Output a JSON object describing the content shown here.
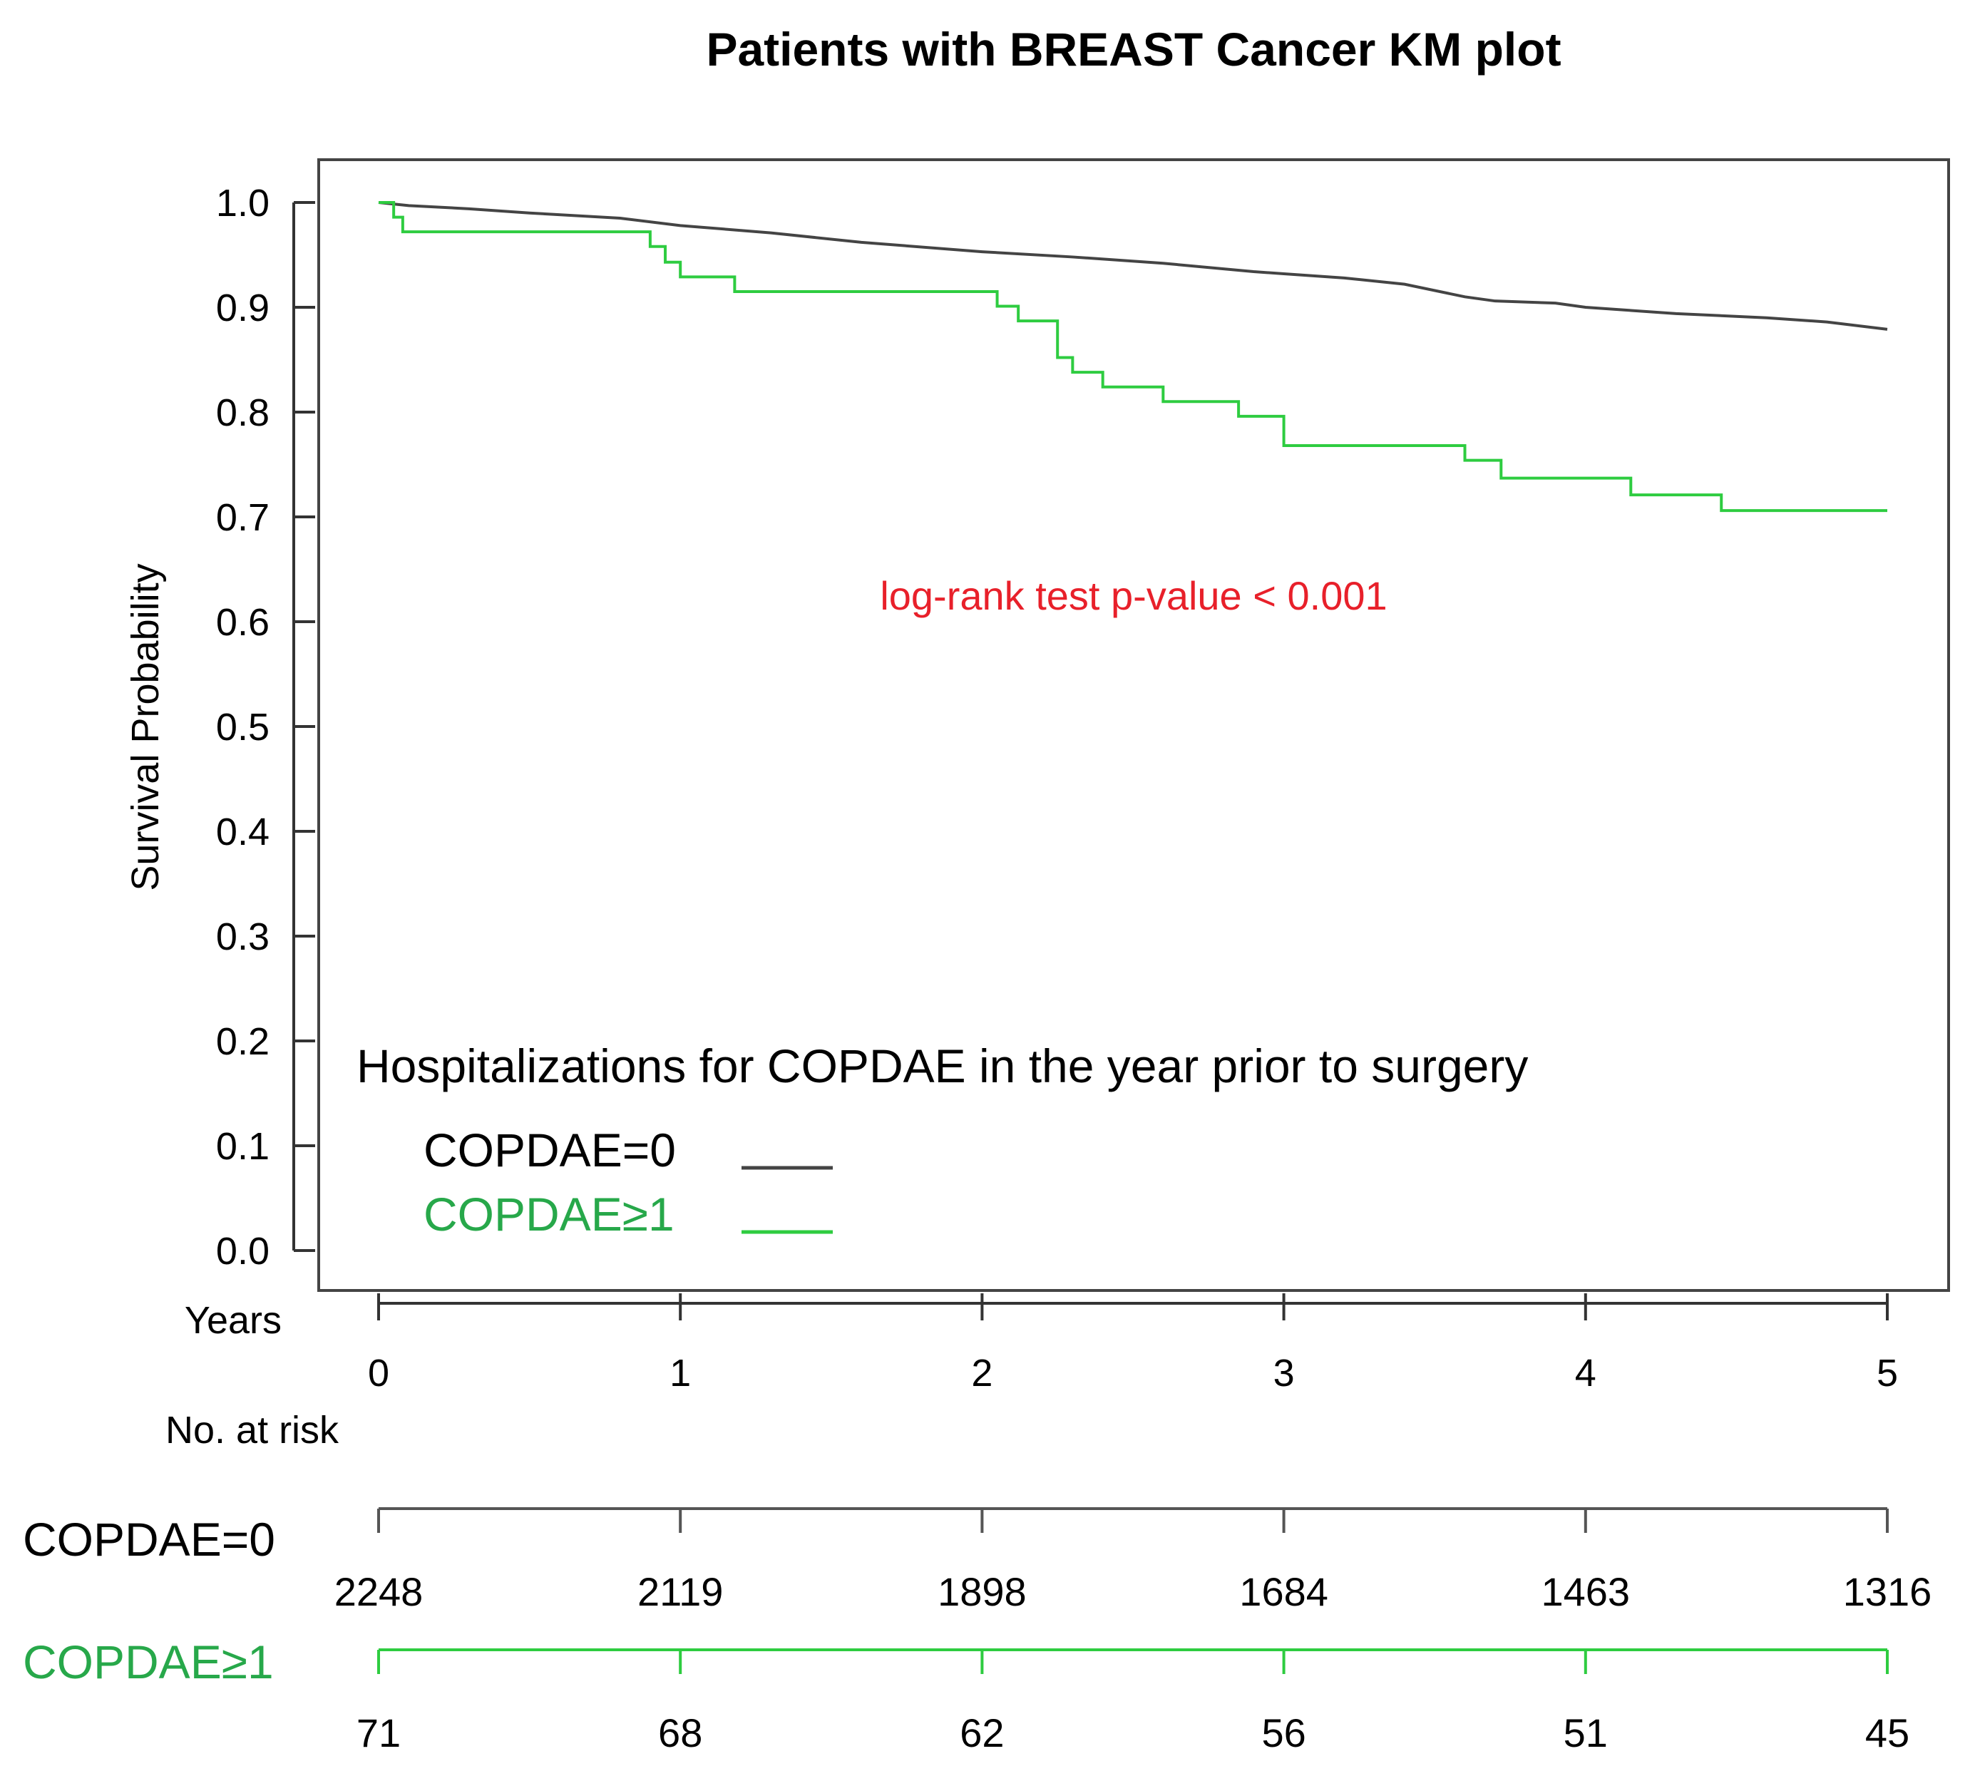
{
  "chart_data": {
    "type": "line",
    "title": "Patients with BREAST Cancer KM plot",
    "xlabel": "Years",
    "ylabel": "Survival Probability",
    "xlim": [
      0,
      5
    ],
    "ylim": [
      0,
      1
    ],
    "x_ticks": [
      "0",
      "1",
      "2",
      "3",
      "4",
      "5"
    ],
    "y_ticks": [
      "0.0",
      "0.1",
      "0.2",
      "0.3",
      "0.4",
      "0.5",
      "0.6",
      "0.7",
      "0.8",
      "0.9",
      "1.0"
    ],
    "grid": false,
    "annotation": {
      "text": "log-rank test p-value < 0.001",
      "color": "#e8202a"
    },
    "legend": {
      "title": "Hospitalizations for COPDAE in the year prior to surgery",
      "position": "bottom-left"
    },
    "series": [
      {
        "name": "COPDAE=0",
        "color": "#444444",
        "step": false,
        "x": [
          0.0,
          0.1,
          0.3,
          0.5,
          0.8,
          1.0,
          1.3,
          1.6,
          2.0,
          2.3,
          2.6,
          2.9,
          3.0,
          3.2,
          3.4,
          3.6,
          3.7,
          3.9,
          4.0,
          4.3,
          4.6,
          4.8,
          5.0
        ],
        "values": [
          1.0,
          0.997,
          0.994,
          0.99,
          0.985,
          0.978,
          0.971,
          0.962,
          0.953,
          0.948,
          0.942,
          0.934,
          0.932,
          0.928,
          0.922,
          0.91,
          0.906,
          0.904,
          0.9,
          0.894,
          0.89,
          0.886,
          0.879
        ]
      },
      {
        "name": "COPDAE≥1",
        "color": "#2ecc40",
        "step": true,
        "x": [
          0.0,
          0.05,
          0.08,
          0.9,
          0.95,
          1.0,
          1.18,
          2.05,
          2.12,
          2.25,
          2.3,
          2.4,
          2.6,
          2.85,
          3.0,
          3.6,
          3.72,
          4.15,
          4.45,
          5.0
        ],
        "values": [
          1.0,
          0.986,
          0.972,
          0.958,
          0.943,
          0.929,
          0.915,
          0.901,
          0.887,
          0.852,
          0.838,
          0.824,
          0.81,
          0.796,
          0.768,
          0.754,
          0.737,
          0.721,
          0.706,
          0.706
        ]
      }
    ],
    "risk_table": {
      "title": "No. at risk",
      "groups": [
        {
          "name": "COPDAE=0",
          "color": "#000000",
          "line_color": "#555555",
          "values": [
            "2248",
            "2119",
            "1898",
            "1684",
            "1463",
            "1316"
          ]
        },
        {
          "name": "COPDAE≥1",
          "color": "#27a84a",
          "line_color": "#2ecc40",
          "values": [
            "71",
            "68",
            "62",
            "56",
            "51",
            "45"
          ]
        }
      ]
    }
  }
}
